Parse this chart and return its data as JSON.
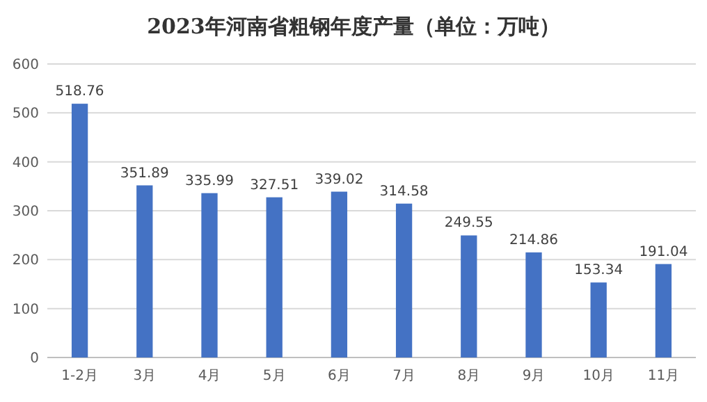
{
  "chart_data": {
    "type": "bar",
    "title": "2023年河南省粗钢年度产量（单位：万吨）",
    "categories": [
      "1-2月",
      "3月",
      "4月",
      "5月",
      "6月",
      "7月",
      "8月",
      "9月",
      "10月",
      "11月"
    ],
    "values": [
      518.76,
      351.89,
      335.99,
      327.51,
      339.02,
      314.58,
      249.55,
      214.86,
      153.34,
      191.04
    ],
    "color": "#4472c4",
    "ylim": [
      0,
      600
    ],
    "yticks": [
      0,
      100,
      200,
      300,
      400,
      500,
      600
    ],
    "grid": "y",
    "data_labels": true
  }
}
